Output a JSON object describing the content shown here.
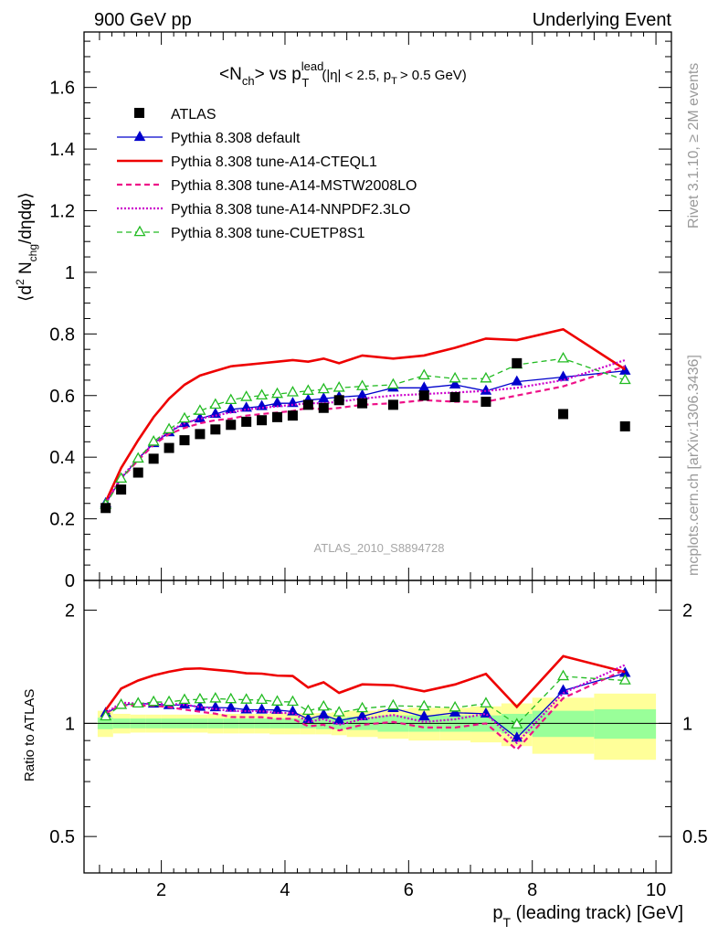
{
  "header": {
    "left": "900 GeV pp",
    "right": "Underlying Event"
  },
  "side_labels": {
    "rivet": "Rivet 3.1.10, ≥ 2M events",
    "mcplots": "mcplots.cern.ch [arXiv:1306.3436]"
  },
  "chart_data": {
    "type": "line",
    "title_parts": {
      "a": "<N",
      "b": "ch",
      "c": "> vs p",
      "d": "lead",
      "e": "T",
      "f": "(|η| < 2.5, p",
      "g": "T",
      "h": "> 0.5 GeV)"
    },
    "analysis_label": "ATLAS_2010_S8894728",
    "xlabel": "p_T (leading track) [GeV]",
    "ylabel": "⟨d² N_chg/dηdφ⟩",
    "ratio_ylabel": "Ratio to ATLAS",
    "xlim": [
      0.75,
      10.25
    ],
    "ylim": [
      0,
      1.78
    ],
    "ratio_ylim": [
      0.4,
      2.4
    ],
    "ratio_log": true,
    "xticks": [
      2,
      4,
      6,
      8,
      10
    ],
    "yticks": [
      0,
      0.2,
      0.4,
      0.6,
      0.8,
      1,
      1.2,
      1.4,
      1.6
    ],
    "ratio_yticks": [
      0.5,
      1,
      2
    ],
    "x": [
      1.1,
      1.35,
      1.625,
      1.875,
      2.125,
      2.375,
      2.625,
      2.875,
      3.125,
      3.375,
      3.625,
      3.875,
      4.125,
      4.375,
      4.625,
      4.875,
      5.25,
      5.75,
      6.25,
      6.75,
      7.25,
      7.75,
      8.5,
      9.5
    ],
    "atlas": [
      0.235,
      0.295,
      0.35,
      0.395,
      0.43,
      0.455,
      0.475,
      0.49,
      0.505,
      0.515,
      0.52,
      0.53,
      0.535,
      0.57,
      0.56,
      0.585,
      0.575,
      0.57,
      0.6,
      0.595,
      0.58,
      0.705,
      0.54,
      0.5
    ],
    "band_edges": [
      0.97,
      1.22,
      1.5,
      1.75,
      2.0,
      2.25,
      2.5,
      2.75,
      3.0,
      3.25,
      3.5,
      3.75,
      4.0,
      4.25,
      4.5,
      4.75,
      5.0,
      5.5,
      6.0,
      6.5,
      7.0,
      7.5,
      8.0,
      9.0,
      10.0
    ],
    "band_stat": [
      0.035,
      0.03,
      0.03,
      0.03,
      0.03,
      0.03,
      0.03,
      0.03,
      0.03,
      0.03,
      0.03,
      0.03,
      0.03,
      0.03,
      0.035,
      0.035,
      0.04,
      0.05,
      0.05,
      0.05,
      0.05,
      0.06,
      0.08,
      0.09
    ],
    "band_tot": [
      0.08,
      0.06,
      0.055,
      0.055,
      0.055,
      0.055,
      0.055,
      0.06,
      0.06,
      0.06,
      0.06,
      0.065,
      0.065,
      0.065,
      0.065,
      0.07,
      0.08,
      0.09,
      0.1,
      0.1,
      0.11,
      0.13,
      0.17,
      0.2
    ],
    "series": [
      {
        "name": "ATLAS",
        "color": "#000000",
        "style": "data"
      },
      {
        "name": "Pythia 8.308 default",
        "color": "#0000cc",
        "style": "solid-triangle",
        "values": [
          0.25,
          0.33,
          0.395,
          0.445,
          0.48,
          0.51,
          0.525,
          0.54,
          0.555,
          0.56,
          0.565,
          0.575,
          0.575,
          0.585,
          0.59,
          0.595,
          0.6,
          0.625,
          0.625,
          0.635,
          0.615,
          0.645,
          0.66,
          0.68
        ]
      },
      {
        "name": "Pythia 8.308 tune-A14-CTEQL1",
        "color": "#ee0000",
        "style": "solid-thick",
        "values": [
          0.255,
          0.365,
          0.455,
          0.53,
          0.59,
          0.635,
          0.665,
          0.68,
          0.695,
          0.7,
          0.705,
          0.71,
          0.715,
          0.71,
          0.72,
          0.705,
          0.73,
          0.72,
          0.73,
          0.755,
          0.785,
          0.78,
          0.815,
          0.685
        ]
      },
      {
        "name": "Pythia 8.308 tune-A14-MSTW2008LO",
        "color": "#ee1188",
        "style": "dashed",
        "values": [
          0.25,
          0.33,
          0.39,
          0.44,
          0.475,
          0.495,
          0.51,
          0.52,
          0.525,
          0.535,
          0.54,
          0.545,
          0.55,
          0.56,
          0.555,
          0.56,
          0.57,
          0.575,
          0.585,
          0.58,
          0.58,
          0.6,
          0.63,
          0.695
        ]
      },
      {
        "name": "Pythia 8.308 tune-A14-NNPDF2.3LO",
        "color": "#cc00cc",
        "style": "dotted",
        "values": [
          0.25,
          0.335,
          0.395,
          0.445,
          0.485,
          0.51,
          0.525,
          0.535,
          0.545,
          0.555,
          0.56,
          0.565,
          0.57,
          0.575,
          0.575,
          0.58,
          0.59,
          0.6,
          0.605,
          0.61,
          0.615,
          0.625,
          0.65,
          0.715
        ]
      },
      {
        "name": "Pythia 8.308 tune-CUETP8S1",
        "color": "#22bb22",
        "style": "dashed-open-triangle",
        "values": [
          0.245,
          0.33,
          0.395,
          0.45,
          0.49,
          0.525,
          0.55,
          0.57,
          0.585,
          0.595,
          0.6,
          0.605,
          0.61,
          0.615,
          0.62,
          0.625,
          0.63,
          0.635,
          0.665,
          0.655,
          0.655,
          0.7,
          0.72,
          0.65
        ]
      }
    ],
    "legend_position": "top-left"
  }
}
